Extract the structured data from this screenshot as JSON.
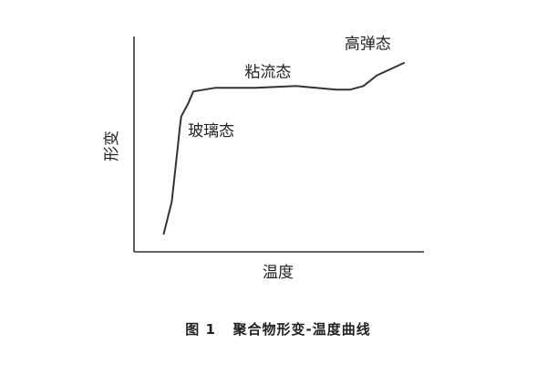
{
  "chart_data": {
    "type": "line",
    "caption": "图 1   聚合物形变-温度曲线",
    "xlabel": "温度",
    "ylabel": "形变",
    "grid": false,
    "legend": "none",
    "xlim": [
      0,
      100
    ],
    "ylim": [
      0,
      100
    ],
    "series": [
      {
        "x": [
          11,
          14,
          16,
          17,
          17.5,
          20,
          22,
          30,
          45,
          60,
          75,
          80,
          85,
          90,
          100
        ],
        "y": [
          4,
          22,
          50,
          64,
          70,
          77,
          84,
          86,
          86,
          87,
          85,
          85,
          87,
          93,
          100
        ]
      }
    ],
    "annotations": [
      {
        "text": "玻璃态",
        "x": 20,
        "y": 59
      },
      {
        "text": "粘流态",
        "x": 41,
        "y": 92
      },
      {
        "text": "高弹态",
        "x": 78,
        "y": 108
      }
    ]
  },
  "colors": {
    "line": "#333333",
    "text": "#222222",
    "background": "#ffffff"
  }
}
